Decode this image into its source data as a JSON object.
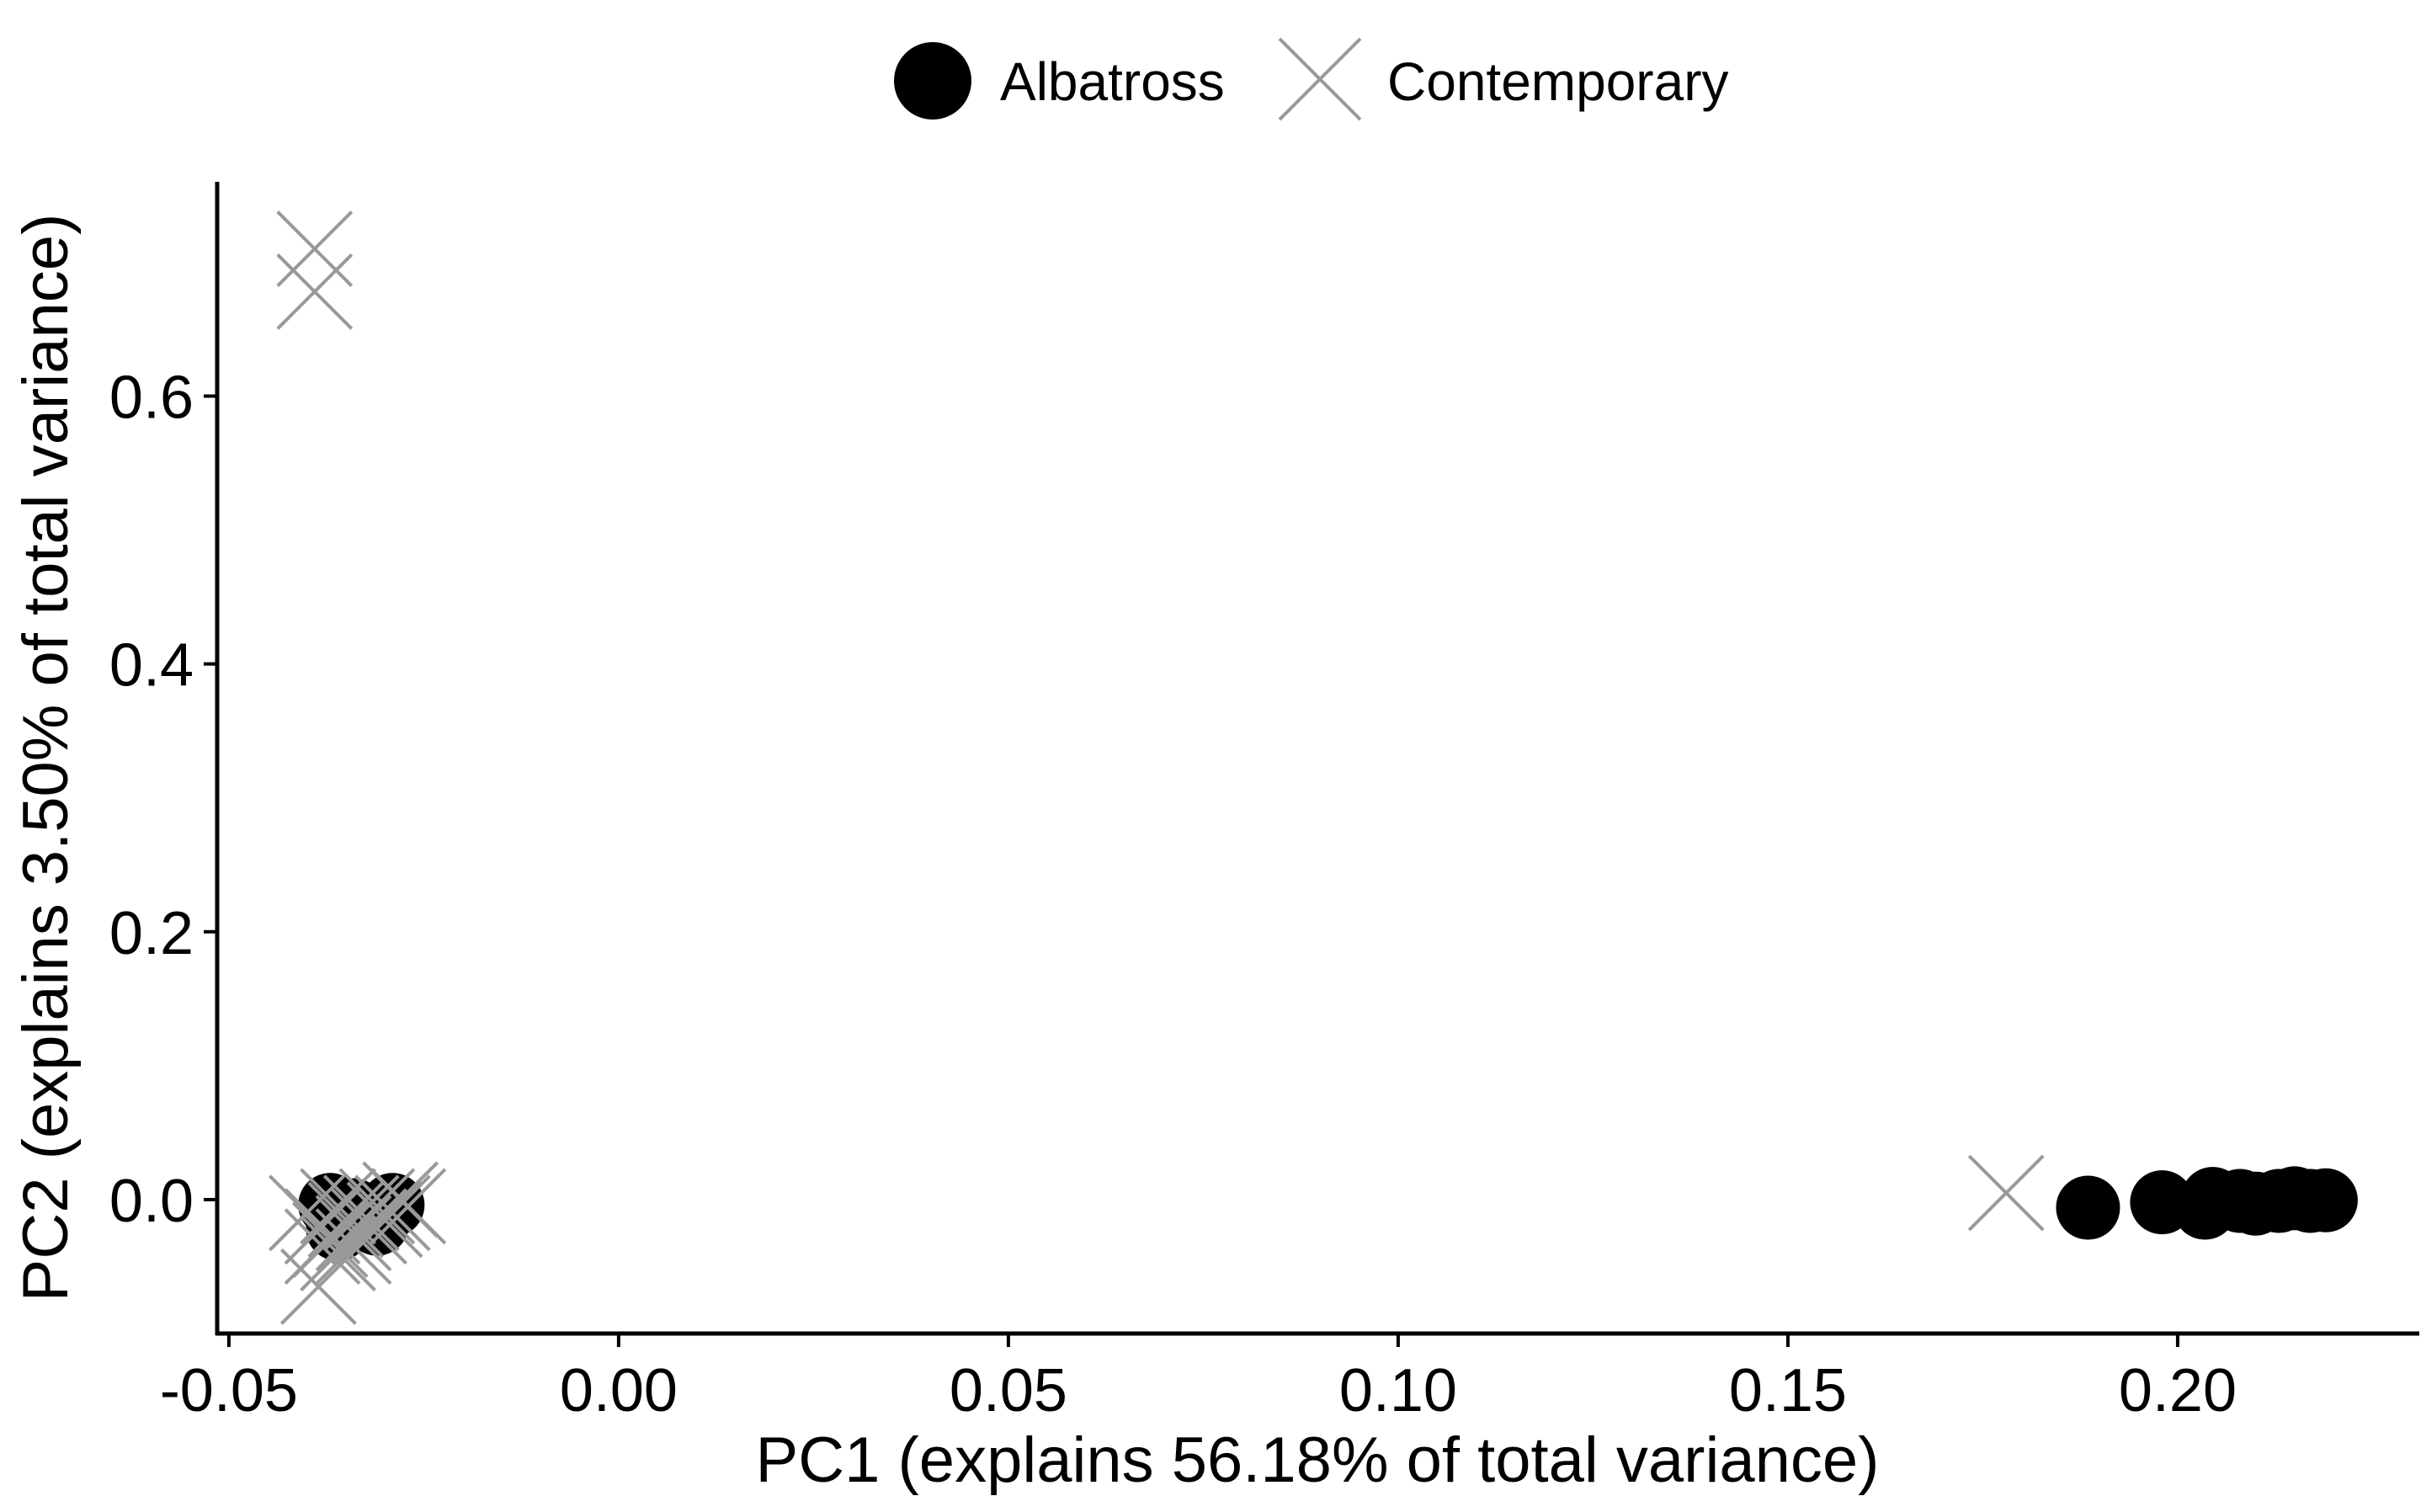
{
  "chart_data": {
    "type": "scatter",
    "xlabel": "PC1 (explains 56.18% of total variance)",
    "ylabel": "PC2 (explains 3.50% of total variance)",
    "xlim": [
      -0.0515,
      0.231
    ],
    "ylim": [
      -0.1,
      0.76
    ],
    "x_ticks": [
      -0.05,
      0.0,
      0.05,
      0.1,
      0.15,
      0.2
    ],
    "x_tick_labels": [
      "-0.05",
      "0.00",
      "0.05",
      "0.10",
      "0.15",
      "0.20"
    ],
    "y_ticks": [
      0.0,
      0.2,
      0.4,
      0.6
    ],
    "y_tick_labels": [
      "0.0",
      "0.2",
      "0.4",
      "0.6"
    ],
    "grid": false,
    "legend_position": "top",
    "series": [
      {
        "name": "Albatross",
        "marker": "filled-circle",
        "color": "#000000",
        "points": [
          [
            -0.037,
            -0.004
          ],
          [
            -0.036,
            -0.01
          ],
          [
            -0.035,
            -0.015
          ],
          [
            -0.034,
            -0.008
          ],
          [
            -0.033,
            -0.012
          ],
          [
            -0.031,
            -0.018
          ],
          [
            -0.029,
            -0.004
          ],
          [
            -0.036,
            -0.022
          ],
          [
            0.1885,
            -0.006
          ],
          [
            0.198,
            -0.002
          ],
          [
            0.2035,
            -0.006
          ],
          [
            0.2045,
            0.0005
          ],
          [
            0.208,
            -0.001
          ],
          [
            0.21,
            -0.003
          ],
          [
            0.213,
            -0.001
          ],
          [
            0.215,
            0.001
          ],
          [
            0.217,
            -0.001
          ],
          [
            0.219,
            -0.0005
          ]
        ]
      },
      {
        "name": "Contemporary",
        "marker": "cross",
        "color": "#999999",
        "points": [
          [
            -0.039,
            0.71
          ],
          [
            -0.039,
            0.678
          ],
          [
            -0.0385,
            -0.065
          ],
          [
            -0.04,
            -0.01
          ],
          [
            -0.038,
            -0.02
          ],
          [
            -0.037,
            -0.03
          ],
          [
            -0.036,
            -0.005
          ],
          [
            -0.035,
            -0.015
          ],
          [
            -0.034,
            -0.025
          ],
          [
            -0.033,
            -0.01
          ],
          [
            -0.032,
            -0.02
          ],
          [
            -0.031,
            -0.005
          ],
          [
            -0.03,
            -0.015
          ],
          [
            -0.038,
            -0.035
          ],
          [
            -0.036,
            -0.04
          ],
          [
            -0.034,
            -0.035
          ],
          [
            -0.029,
            -0.01
          ],
          [
            -0.028,
            0.0
          ],
          [
            -0.027,
            -0.005
          ],
          [
            0.178,
            0.005
          ]
        ]
      }
    ]
  }
}
